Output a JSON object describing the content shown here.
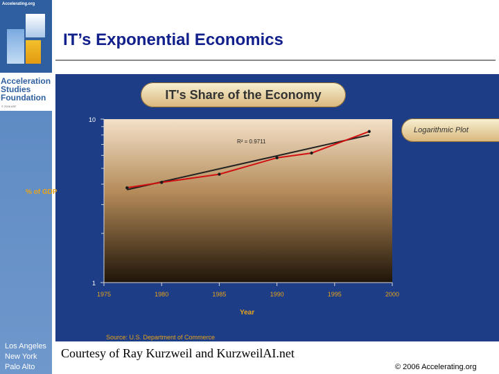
{
  "sidebar": {
    "logo_url": "Accelerating.org",
    "logo_name": "Acceleration\nStudies\nFoundation",
    "logo_copyright": "© 2006 ASF",
    "cities": "Los Angeles\nNew York\nPalo Alto"
  },
  "header": {
    "title": "IT’s Exponential Economics"
  },
  "chart_data": {
    "type": "line",
    "title": "IT's Share of the Economy",
    "subtitle_badge": "Logarithmic Plot",
    "ylabel": "% of GDP",
    "xlabel": "Year",
    "source": "Source: U.S. Department of Commerce",
    "r_squared": "R² = 0.9711",
    "x_ticks": [
      "1975",
      "1980",
      "1985",
      "1990",
      "1995",
      "2000"
    ],
    "y_ticks": [
      "1",
      "10"
    ],
    "y_scale": "log",
    "xlim": [
      1975,
      2000
    ],
    "ylim": [
      1,
      10
    ],
    "series": [
      {
        "color": "#d01010",
        "x": [
          1977,
          1980,
          1985,
          1990,
          1993,
          1998
        ],
        "y": [
          3.8,
          4.1,
          4.6,
          5.8,
          6.2,
          8.4
        ]
      }
    ],
    "trendline": {
      "color": "#222222",
      "x": [
        1977,
        1998
      ],
      "y": [
        3.7,
        8.0
      ]
    }
  },
  "footer": {
    "credit": "Courtesy of Ray Kurzweil and KurzweilAI.net",
    "copyright": "© 2006 Accelerating.org"
  }
}
